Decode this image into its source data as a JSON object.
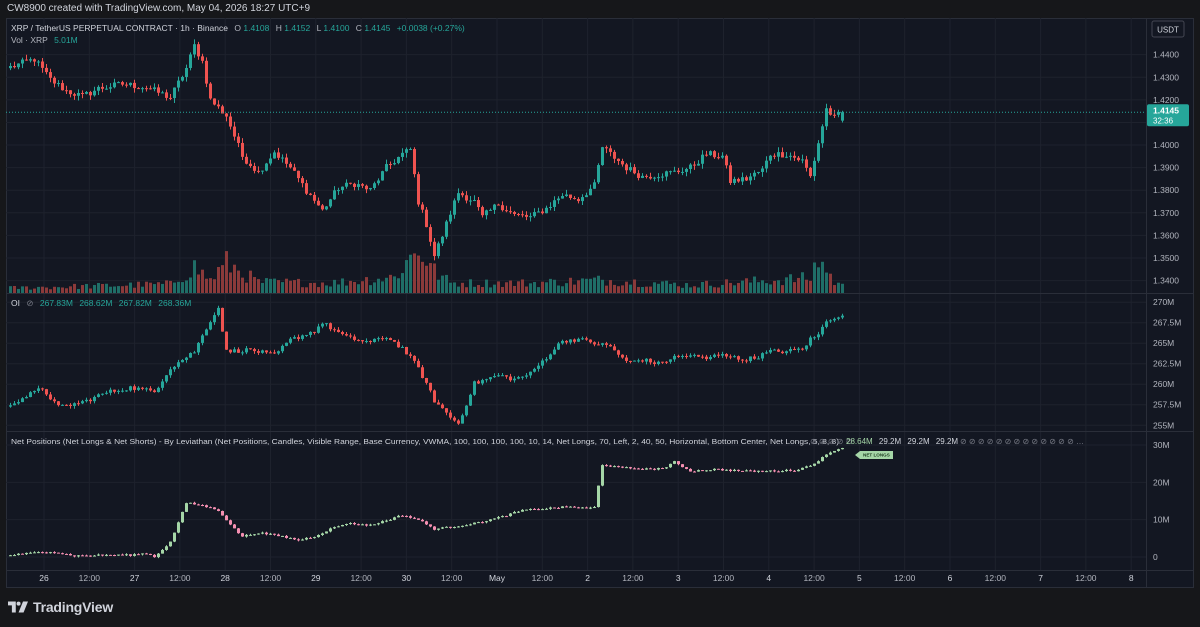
{
  "watermark": "CW8900 created with TradingView.com, May 04, 2026 18:27 UTC+9",
  "brand": "TradingView",
  "colors": {
    "up": "#26a69a",
    "down": "#ef5350",
    "vol_up": "#1f6e67",
    "vol_down": "#8b3a3a",
    "np_up": "#a5d6a7",
    "np_down": "#f48fb1",
    "bg": "#131722",
    "grid": "#1e222d",
    "text": "#b2b5be"
  },
  "legend": {
    "symbol": "XRP / TetherUS PERPETUAL CONTRACT · 1h · Binance",
    "o_label": "O",
    "o": "1.4108",
    "h_label": "H",
    "h": "1.4152",
    "l_label": "L",
    "l": "1.4100",
    "c_label": "C",
    "c": "1.4145",
    "change": "+0.0038 (+0.27%)",
    "vol_label": "Vol · XRP",
    "vol": "5.01M"
  },
  "oi_legend": {
    "label": "OI",
    "values": [
      "267.83M",
      "268.62M",
      "267.82M",
      "268.36M"
    ]
  },
  "np_legend": {
    "label": "Net Positions (Net Longs & Net Shorts) - By Leviathan (Net Positions, Candles, Visible Range, Base Currency, VWMA, 100, 100, 100, 100, 10, 14, Net Longs, 70, Left, 2, 40, 50, Horizontal, Bottom Center, Net Longs, 5, 8, 8)",
    "values": [
      "28.64M",
      "29.2M",
      "29.2M",
      "29.2M"
    ]
  },
  "currency": "USDT",
  "price_label": {
    "value": "1.4145",
    "countdown": "32:36"
  },
  "net_longs_tag": "NET LONGS",
  "chart_data": [
    {
      "type": "candlestick",
      "name": "price",
      "title": "XRP / TetherUS PERPETUAL CONTRACT · 1h · Binance",
      "x_ticks": [
        "26",
        "12:00",
        "27",
        "12:00",
        "28",
        "12:00",
        "29",
        "12:00",
        "30",
        "12:00",
        "May",
        "12:00",
        "2",
        "12:00",
        "3",
        "12:00",
        "4",
        "12:00",
        "5",
        "12:00",
        "6",
        "12:00",
        "7",
        "12:00",
        "8"
      ],
      "y_ticks": [
        "1.4400",
        "1.4300",
        "1.4200",
        "1.4100",
        "1.4000",
        "1.3900",
        "1.3800",
        "1.3700",
        "1.3600",
        "1.3500",
        "1.3400"
      ],
      "ylim": [
        1.3345,
        1.4465
      ],
      "anchors": [
        [
          0,
          1.4345
        ],
        [
          6,
          1.438
        ],
        [
          10,
          1.429
        ],
        [
          14,
          1.424
        ],
        [
          18,
          1.4215
        ],
        [
          22,
          1.425
        ],
        [
          28,
          1.427
        ],
        [
          34,
          1.4255
        ],
        [
          40,
          1.421
        ],
        [
          44,
          1.434
        ],
        [
          46,
          1.444
        ],
        [
          48,
          1.437
        ],
        [
          50,
          1.42
        ],
        [
          54,
          1.413
        ],
        [
          58,
          1.395
        ],
        [
          62,
          1.388
        ],
        [
          66,
          1.397
        ],
        [
          70,
          1.39
        ],
        [
          74,
          1.38
        ],
        [
          78,
          1.371
        ],
        [
          82,
          1.381
        ],
        [
          86,
          1.383
        ],
        [
          90,
          1.38
        ],
        [
          94,
          1.39
        ],
        [
          98,
          1.396
        ],
        [
          100,
          1.398
        ],
        [
          102,
          1.375
        ],
        [
          104,
          1.365
        ],
        [
          106,
          1.351
        ],
        [
          108,
          1.36
        ],
        [
          110,
          1.37
        ],
        [
          112,
          1.379
        ],
        [
          116,
          1.375
        ],
        [
          118,
          1.368
        ],
        [
          122,
          1.374
        ],
        [
          126,
          1.369
        ],
        [
          130,
          1.368
        ],
        [
          134,
          1.372
        ],
        [
          138,
          1.378
        ],
        [
          142,
          1.376
        ],
        [
          146,
          1.382
        ],
        [
          148,
          1.399
        ],
        [
          150,
          1.396
        ],
        [
          154,
          1.39
        ],
        [
          158,
          1.386
        ],
        [
          162,
          1.387
        ],
        [
          166,
          1.388
        ],
        [
          170,
          1.39
        ],
        [
          174,
          1.396
        ],
        [
          178,
          1.395
        ],
        [
          180,
          1.384
        ],
        [
          184,
          1.385
        ],
        [
          188,
          1.389
        ],
        [
          190,
          1.396
        ],
        [
          194,
          1.396
        ],
        [
          198,
          1.393
        ],
        [
          200,
          1.386
        ],
        [
          202,
          1.401
        ],
        [
          204,
          1.416
        ],
        [
          206,
          1.412
        ],
        [
          208,
          1.4145
        ]
      ],
      "last": {
        "o": 1.4108,
        "h": 1.4152,
        "l": 1.41,
        "c": 1.4145
      }
    },
    {
      "type": "bar",
      "name": "volume",
      "anchors": [
        [
          0,
          0.5
        ],
        [
          20,
          0.7
        ],
        [
          40,
          0.9
        ],
        [
          46,
          2.6
        ],
        [
          50,
          1.3
        ],
        [
          54,
          3.0
        ],
        [
          62,
          1.1
        ],
        [
          80,
          1.0
        ],
        [
          96,
          1.6
        ],
        [
          102,
          4.5
        ],
        [
          106,
          2.2
        ],
        [
          110,
          1.0
        ],
        [
          130,
          1.0
        ],
        [
          148,
          1.3
        ],
        [
          170,
          0.8
        ],
        [
          200,
          1.5
        ],
        [
          202,
          3.5
        ],
        [
          206,
          1.1
        ],
        [
          208,
          0.7
        ]
      ],
      "max": 5.01
    },
    {
      "type": "candlestick",
      "name": "OI",
      "y_ticks": [
        "270M",
        "267.5M",
        "265M",
        "262.5M",
        "260M",
        "257.5M",
        "255M"
      ],
      "ylim": [
        254.3,
        271.0
      ],
      "anchors": [
        [
          0,
          257.6
        ],
        [
          8,
          259.5
        ],
        [
          12,
          257.2
        ],
        [
          18,
          257.8
        ],
        [
          24,
          259.0
        ],
        [
          30,
          259.6
        ],
        [
          36,
          259.1
        ],
        [
          40,
          262.0
        ],
        [
          46,
          264.0
        ],
        [
          50,
          267.8
        ],
        [
          52,
          269.3
        ],
        [
          54,
          264.0
        ],
        [
          60,
          264.2
        ],
        [
          66,
          263.5
        ],
        [
          70,
          265.4
        ],
        [
          76,
          266.5
        ],
        [
          78,
          267.5
        ],
        [
          84,
          265.7
        ],
        [
          90,
          265.1
        ],
        [
          94,
          265.8
        ],
        [
          98,
          264.4
        ],
        [
          102,
          262.0
        ],
        [
          106,
          258.0
        ],
        [
          110,
          256.0
        ],
        [
          112,
          255.2
        ],
        [
          116,
          260.1
        ],
        [
          122,
          261.1
        ],
        [
          126,
          260.6
        ],
        [
          130,
          261.3
        ],
        [
          134,
          263.3
        ],
        [
          138,
          265.3
        ],
        [
          142,
          265.5
        ],
        [
          146,
          265.0
        ],
        [
          150,
          264.6
        ],
        [
          154,
          262.7
        ],
        [
          158,
          263.0
        ],
        [
          162,
          262.5
        ],
        [
          166,
          263.3
        ],
        [
          170,
          263.5
        ],
        [
          174,
          263.1
        ],
        [
          178,
          263.8
        ],
        [
          182,
          263.0
        ],
        [
          186,
          263.2
        ],
        [
          190,
          264.0
        ],
        [
          194,
          264.0
        ],
        [
          198,
          264.3
        ],
        [
          200,
          265.5
        ],
        [
          202,
          266.0
        ],
        [
          204,
          267.8
        ],
        [
          206,
          268.2
        ],
        [
          208,
          268.36
        ]
      ]
    },
    {
      "type": "candlestick",
      "name": "Net Positions",
      "y_ticks": [
        "30M",
        "20M",
        "10M",
        "0"
      ],
      "ylim": [
        -3.5,
        33.5
      ],
      "anchors": [
        [
          0,
          0.5
        ],
        [
          10,
          1.5
        ],
        [
          16,
          0.3
        ],
        [
          24,
          0.5
        ],
        [
          30,
          0.5
        ],
        [
          34,
          1.0
        ],
        [
          36,
          0.0
        ],
        [
          40,
          4.0
        ],
        [
          44,
          14.5
        ],
        [
          48,
          13.8
        ],
        [
          52,
          12.5
        ],
        [
          56,
          7.5
        ],
        [
          58,
          5.5
        ],
        [
          62,
          6.5
        ],
        [
          68,
          5.5
        ],
        [
          72,
          4.5
        ],
        [
          76,
          5.5
        ],
        [
          80,
          7.5
        ],
        [
          84,
          9.0
        ],
        [
          90,
          8.5
        ],
        [
          94,
          9.8
        ],
        [
          98,
          11.2
        ],
        [
          102,
          10.0
        ],
        [
          106,
          7.5
        ],
        [
          110,
          8.0
        ],
        [
          116,
          9.0
        ],
        [
          122,
          10.5
        ],
        [
          128,
          12.5
        ],
        [
          134,
          13.0
        ],
        [
          140,
          13.5
        ],
        [
          144,
          13.0
        ],
        [
          146,
          13.3
        ],
        [
          148,
          24.8
        ],
        [
          152,
          24.0
        ],
        [
          160,
          23.5
        ],
        [
          164,
          24.0
        ],
        [
          166,
          25.5
        ],
        [
          170,
          23.0
        ],
        [
          176,
          23.5
        ],
        [
          184,
          23.0
        ],
        [
          188,
          23.0
        ],
        [
          196,
          23.2
        ],
        [
          200,
          24.5
        ],
        [
          204,
          27.3
        ],
        [
          206,
          28.64
        ],
        [
          208,
          29.2
        ]
      ]
    }
  ]
}
